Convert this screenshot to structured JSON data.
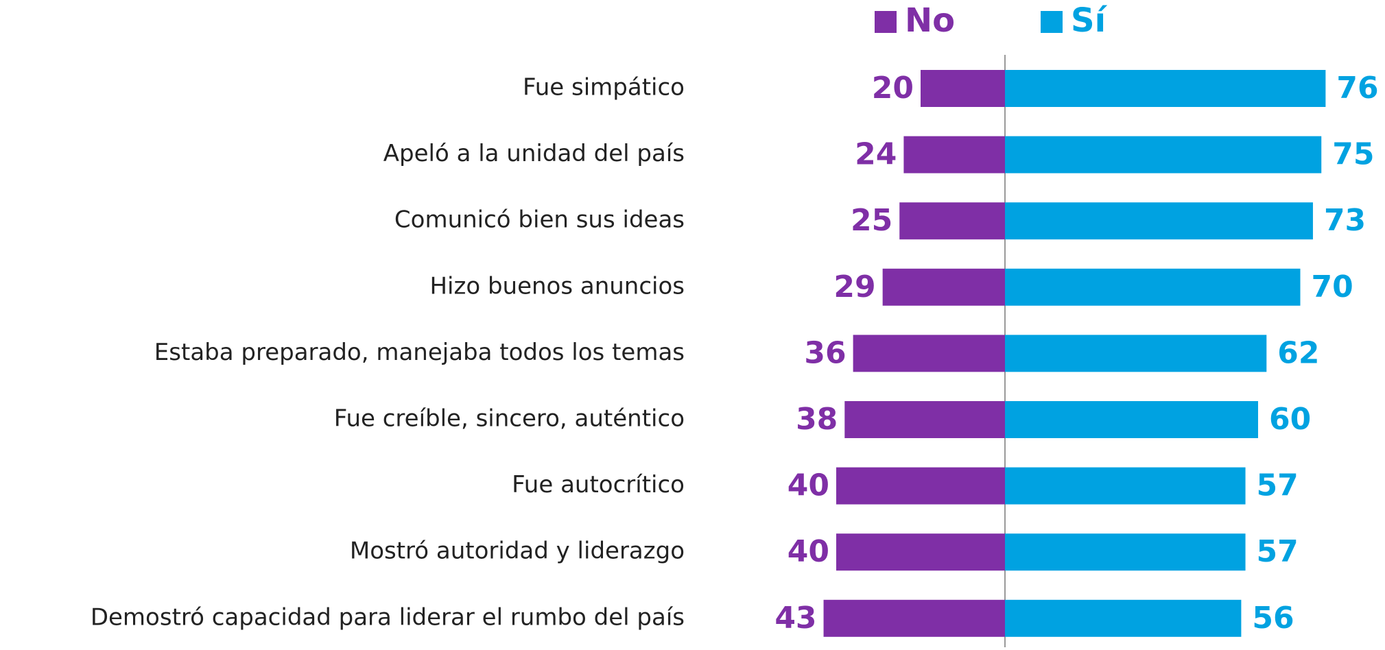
{
  "chart_data": {
    "type": "bar",
    "categories": [
      "Fue simpático",
      "Apeló a la unidad del país",
      "Comunicó bien sus ideas",
      "Hizo buenos anuncios",
      "Estaba preparado, manejaba todos los temas",
      "Fue creíble, sincero, auténtico",
      "Fue autocrítico",
      "Mostró autoridad y liderazgo",
      "Demostró capacidad para liderar el rumbo del país"
    ],
    "series": [
      {
        "name": "No",
        "color": "#7f2fa6",
        "values": [
          20,
          24,
          25,
          29,
          36,
          38,
          40,
          40,
          43
        ]
      },
      {
        "name": "Sí",
        "color": "#00a2e1",
        "values": [
          76,
          75,
          73,
          70,
          62,
          60,
          57,
          57,
          56
        ]
      }
    ],
    "legend": "top"
  }
}
